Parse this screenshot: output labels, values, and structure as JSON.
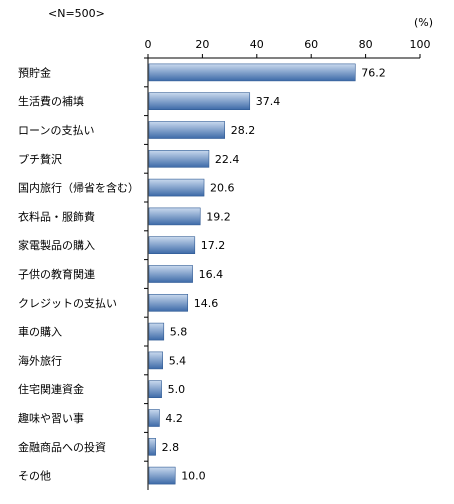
{
  "chart_data": {
    "type": "bar",
    "orientation": "horizontal",
    "sample_note": "<N=500>",
    "unit_label": "(%)",
    "xlim": [
      0,
      100
    ],
    "x_ticks": [
      "0",
      "20",
      "40",
      "60",
      "80",
      "100"
    ],
    "grid": false,
    "categories": [
      "預貯金",
      "生活費の補填",
      "ローンの支払い",
      "プチ贅沢",
      "国内旅行（帰省を含む）",
      "衣料品・服飾費",
      "家電製品の購入",
      "子供の教育関連",
      "クレジットの支払い",
      "車の購入",
      "海外旅行",
      "住宅関連資金",
      "趣味や習い事",
      "金融商品への投資",
      "その他"
    ],
    "values": [
      76.2,
      37.4,
      28.2,
      22.4,
      20.6,
      19.2,
      17.2,
      16.4,
      14.6,
      5.8,
      5.4,
      5.0,
      4.2,
      2.8,
      10.0
    ],
    "value_labels": [
      "76.2",
      "37.4",
      "28.2",
      "22.4",
      "20.6",
      "19.2",
      "17.2",
      "16.4",
      "14.6",
      "5.8",
      "5.4",
      "5.0",
      "4.2",
      "2.8",
      "10.0"
    ],
    "colors": {
      "bar_light": "#c9d9ee",
      "bar_dark": "#3d6aa8",
      "bar_stroke": "#2f5a94",
      "axis": "#000000"
    }
  }
}
